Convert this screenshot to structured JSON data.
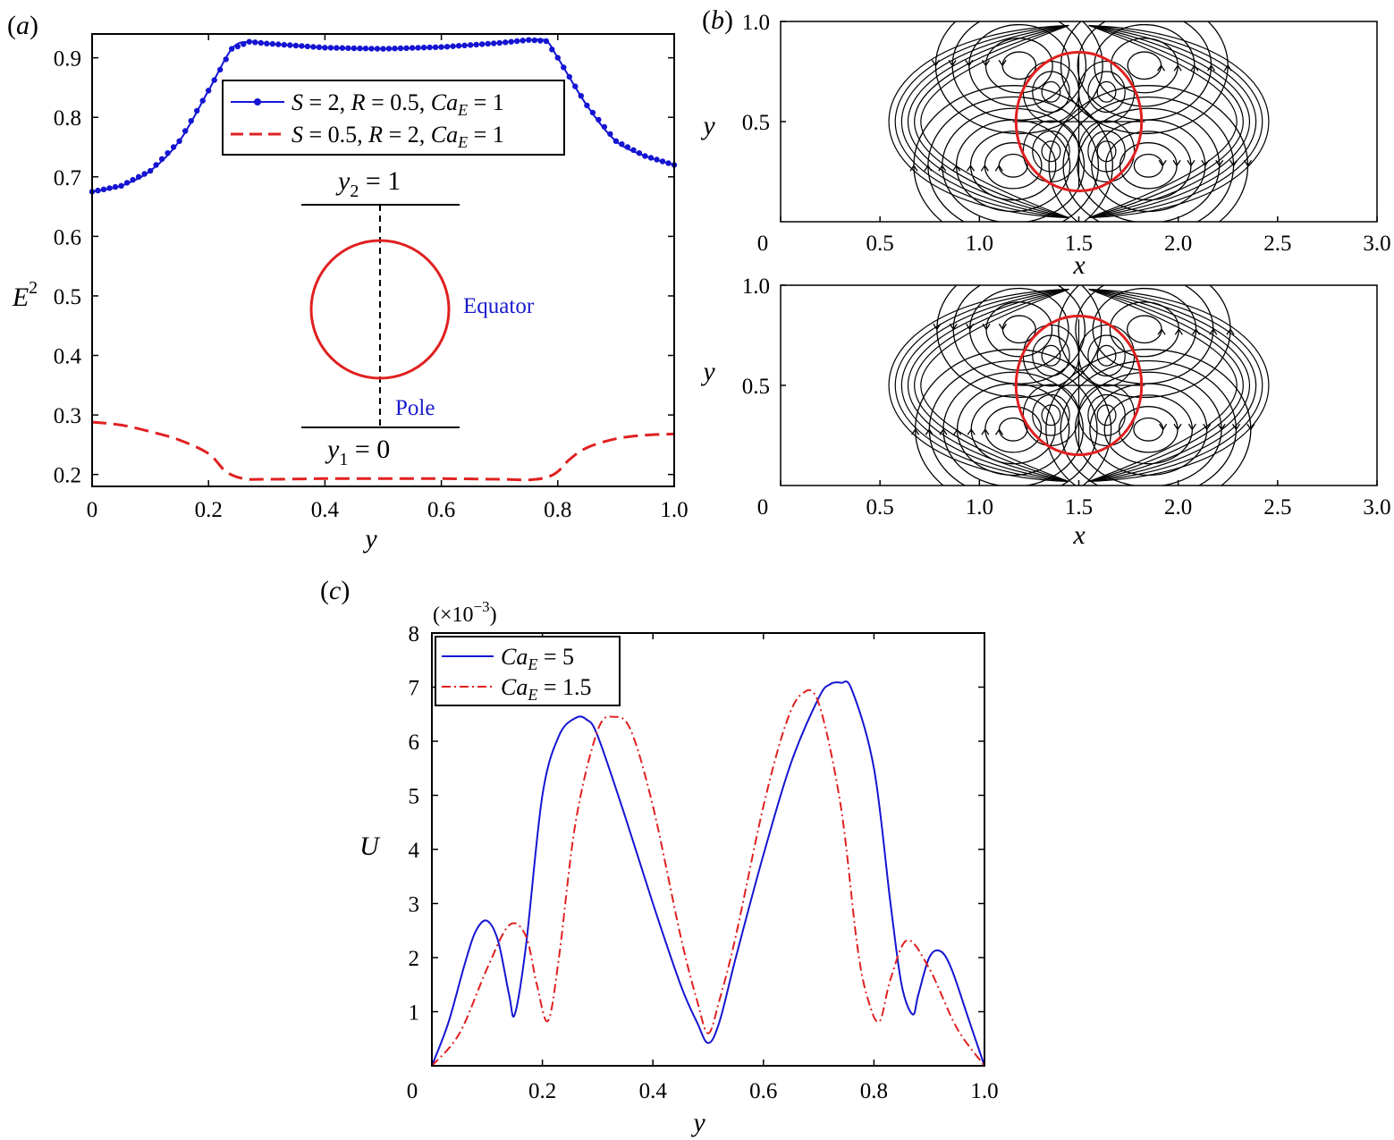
{
  "chart_data": [
    {
      "panel_label": "(a)",
      "type": "line",
      "xlabel": "y",
      "ylabel": "E",
      "ylabel_sup": "2",
      "xlim": [
        0,
        1
      ],
      "ylim": [
        0.18,
        0.94
      ],
      "xticks": [
        "0",
        "0.2",
        "0.4",
        "0.6",
        "0.8",
        "1.0"
      ],
      "yticks": [
        "0.2",
        "0.3",
        "0.4",
        "0.5",
        "0.6",
        "0.7",
        "0.8",
        "0.9"
      ],
      "legend": {
        "placement": "top-center",
        "entries": [
          {
            "p1": "S",
            "e1": " = 2, ",
            "p2": "R",
            "e2": " = 0.5, ",
            "p3": "Ca",
            "sub": "E",
            "e3": " = 1",
            "color": "#1414d2",
            "style": "solid-dots"
          },
          {
            "p1": "S",
            "e1": " = 0.5, ",
            "p2": "R",
            "e2": " = 2, ",
            "p3": "Ca",
            "sub": "E",
            "e3": " = 1",
            "color": "#e02020",
            "style": "dashed"
          }
        ]
      },
      "inset": {
        "top_wall": {
          "var": "y",
          "sub": "2",
          "eq": " = 1"
        },
        "bottom_wall": {
          "var": "y",
          "sub": "1",
          "eq": " = 0"
        },
        "equator_label": "Equator",
        "pole_label": "Pole"
      },
      "series": [
        {
          "name": "S = 2, R = 0.5, CaE = 1",
          "color": "#1414d2",
          "x": [
            0,
            0.05,
            0.1,
            0.15,
            0.2,
            0.24,
            0.27,
            0.3,
            0.4,
            0.5,
            0.6,
            0.7,
            0.75,
            0.78,
            0.8,
            0.85,
            0.9,
            0.95,
            1.0
          ],
          "y": [
            0.675,
            0.685,
            0.71,
            0.76,
            0.845,
            0.915,
            0.927,
            0.924,
            0.917,
            0.915,
            0.918,
            0.925,
            0.93,
            0.928,
            0.9,
            0.82,
            0.76,
            0.735,
            0.72
          ]
        },
        {
          "name": "S = 0.5, R = 2, CaE = 1",
          "color": "#e02020",
          "x": [
            0,
            0.05,
            0.1,
            0.15,
            0.2,
            0.23,
            0.26,
            0.3,
            0.4,
            0.5,
            0.6,
            0.7,
            0.75,
            0.78,
            0.8,
            0.82,
            0.85,
            0.9,
            0.95,
            1.0
          ],
          "y": [
            0.288,
            0.283,
            0.272,
            0.258,
            0.235,
            0.205,
            0.193,
            0.192,
            0.193,
            0.193,
            0.193,
            0.192,
            0.191,
            0.195,
            0.205,
            0.225,
            0.245,
            0.26,
            0.266,
            0.268
          ]
        }
      ]
    },
    {
      "panel_label": "(b)",
      "type": "streamlines",
      "xlabel": "x",
      "ylabel": "y",
      "xlim": [
        0,
        3
      ],
      "ylim": [
        0,
        1
      ],
      "xticks": [
        "0",
        "0.5",
        "1.0",
        "1.5",
        "2.0",
        "2.5",
        "3.0"
      ],
      "yticks": [
        "0.5",
        "1.0"
      ],
      "drop": {
        "center": [
          1.5,
          0.5
        ],
        "color": "#e02020"
      }
    },
    {
      "panel_label": "(c)",
      "type": "line",
      "xlabel": "y",
      "ylabel": "U",
      "scale_note": "(×10",
      "scale_exp": "−3",
      "scale_close": ")",
      "xlim": [
        0,
        1
      ],
      "ylim": [
        0,
        8
      ],
      "xticks": [
        "0",
        "0.2",
        "0.4",
        "0.6",
        "0.8",
        "1.0"
      ],
      "yticks": [
        "1",
        "2",
        "3",
        "4",
        "5",
        "6",
        "7",
        "8"
      ],
      "legend": {
        "placement": "top-left",
        "entries": [
          {
            "p": "Ca",
            "sub": "E",
            "eq": " = 5",
            "color": "#1414d2",
            "style": "solid"
          },
          {
            "p": "Ca",
            "sub": "E",
            "eq": " = 1.5",
            "color": "#e02020",
            "style": "dashdot"
          }
        ]
      },
      "series": [
        {
          "name": "CaE = 5",
          "color": "#1414d2",
          "x": [
            0,
            0.03,
            0.06,
            0.08,
            0.1,
            0.12,
            0.14,
            0.15,
            0.17,
            0.2,
            0.23,
            0.26,
            0.28,
            0.3,
            0.35,
            0.4,
            0.45,
            0.48,
            0.5,
            0.52,
            0.55,
            0.6,
            0.65,
            0.7,
            0.72,
            0.74,
            0.76,
            0.8,
            0.83,
            0.85,
            0.87,
            0.88,
            0.9,
            0.92,
            0.94,
            0.97,
            1.0
          ],
          "y": [
            0,
            0.8,
            1.9,
            2.5,
            2.68,
            2.3,
            1.3,
            0.95,
            2.2,
            5.0,
            6.1,
            6.43,
            6.4,
            6.1,
            4.6,
            3.0,
            1.5,
            0.8,
            0.42,
            0.8,
            2.0,
            3.9,
            5.6,
            6.8,
            7.05,
            7.08,
            6.95,
            5.5,
            3.0,
            1.5,
            0.95,
            1.3,
            2.0,
            2.12,
            1.8,
            0.9,
            0
          ]
        },
        {
          "name": "CaE = 1.5",
          "color": "#e02020",
          "x": [
            0,
            0.05,
            0.1,
            0.14,
            0.17,
            0.19,
            0.21,
            0.23,
            0.26,
            0.3,
            0.33,
            0.36,
            0.4,
            0.45,
            0.48,
            0.5,
            0.52,
            0.55,
            0.6,
            0.64,
            0.67,
            0.7,
            0.74,
            0.77,
            0.79,
            0.81,
            0.83,
            0.86,
            0.9,
            0.95,
            1.0
          ],
          "y": [
            0,
            0.6,
            1.8,
            2.6,
            2.4,
            1.5,
            0.83,
            2.0,
            4.5,
            6.2,
            6.45,
            6.2,
            4.8,
            2.4,
            1.2,
            0.6,
            1.2,
            2.4,
            4.8,
            6.3,
            6.88,
            6.7,
            4.8,
            2.2,
            1.2,
            0.82,
            1.6,
            2.32,
            1.8,
            0.7,
            0
          ]
        }
      ]
    }
  ]
}
